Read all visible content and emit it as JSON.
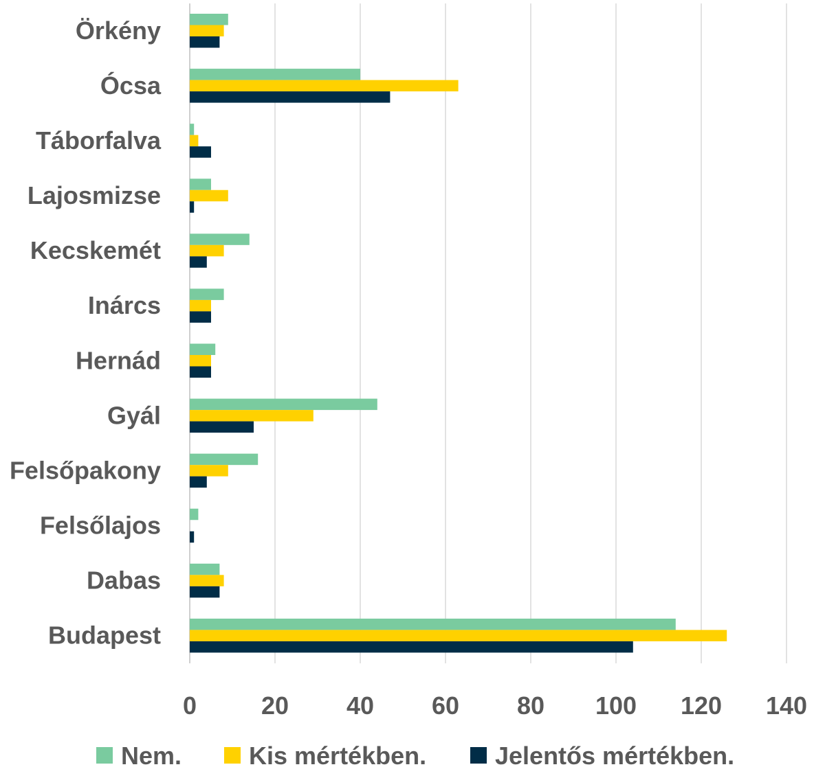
{
  "chart_data": {
    "type": "bar",
    "orientation": "horizontal",
    "categories": [
      "Örkény",
      "Ócsa",
      "Táborfalva",
      "Lajosmizse",
      "Kecskemét",
      "Inárcs",
      "Hernád",
      "Gyál",
      "Felsőpakony",
      "Felsőlajos",
      "Dabas",
      "Budapest"
    ],
    "series": [
      {
        "name": "Nem.",
        "color": "#7acb9f",
        "values": [
          9,
          40,
          1,
          5,
          14,
          8,
          6,
          44,
          16,
          2,
          7,
          114
        ]
      },
      {
        "name": "Kis mértékben.",
        "color": "#ffd100",
        "values": [
          8,
          63,
          2,
          9,
          8,
          5,
          5,
          29,
          9,
          0,
          8,
          126
        ]
      },
      {
        "name": "Jelentős mértékben.",
        "color": "#012d47",
        "values": [
          7,
          47,
          5,
          1,
          4,
          5,
          5,
          15,
          4,
          1,
          7,
          104
        ]
      }
    ],
    "xlim": [
      0,
      140
    ],
    "xticks": [
      "0",
      "20",
      "40",
      "60",
      "80",
      "100",
      "120",
      "140"
    ],
    "grid": true,
    "legend_position": "bottom",
    "title": "",
    "xlabel": "",
    "ylabel": ""
  }
}
